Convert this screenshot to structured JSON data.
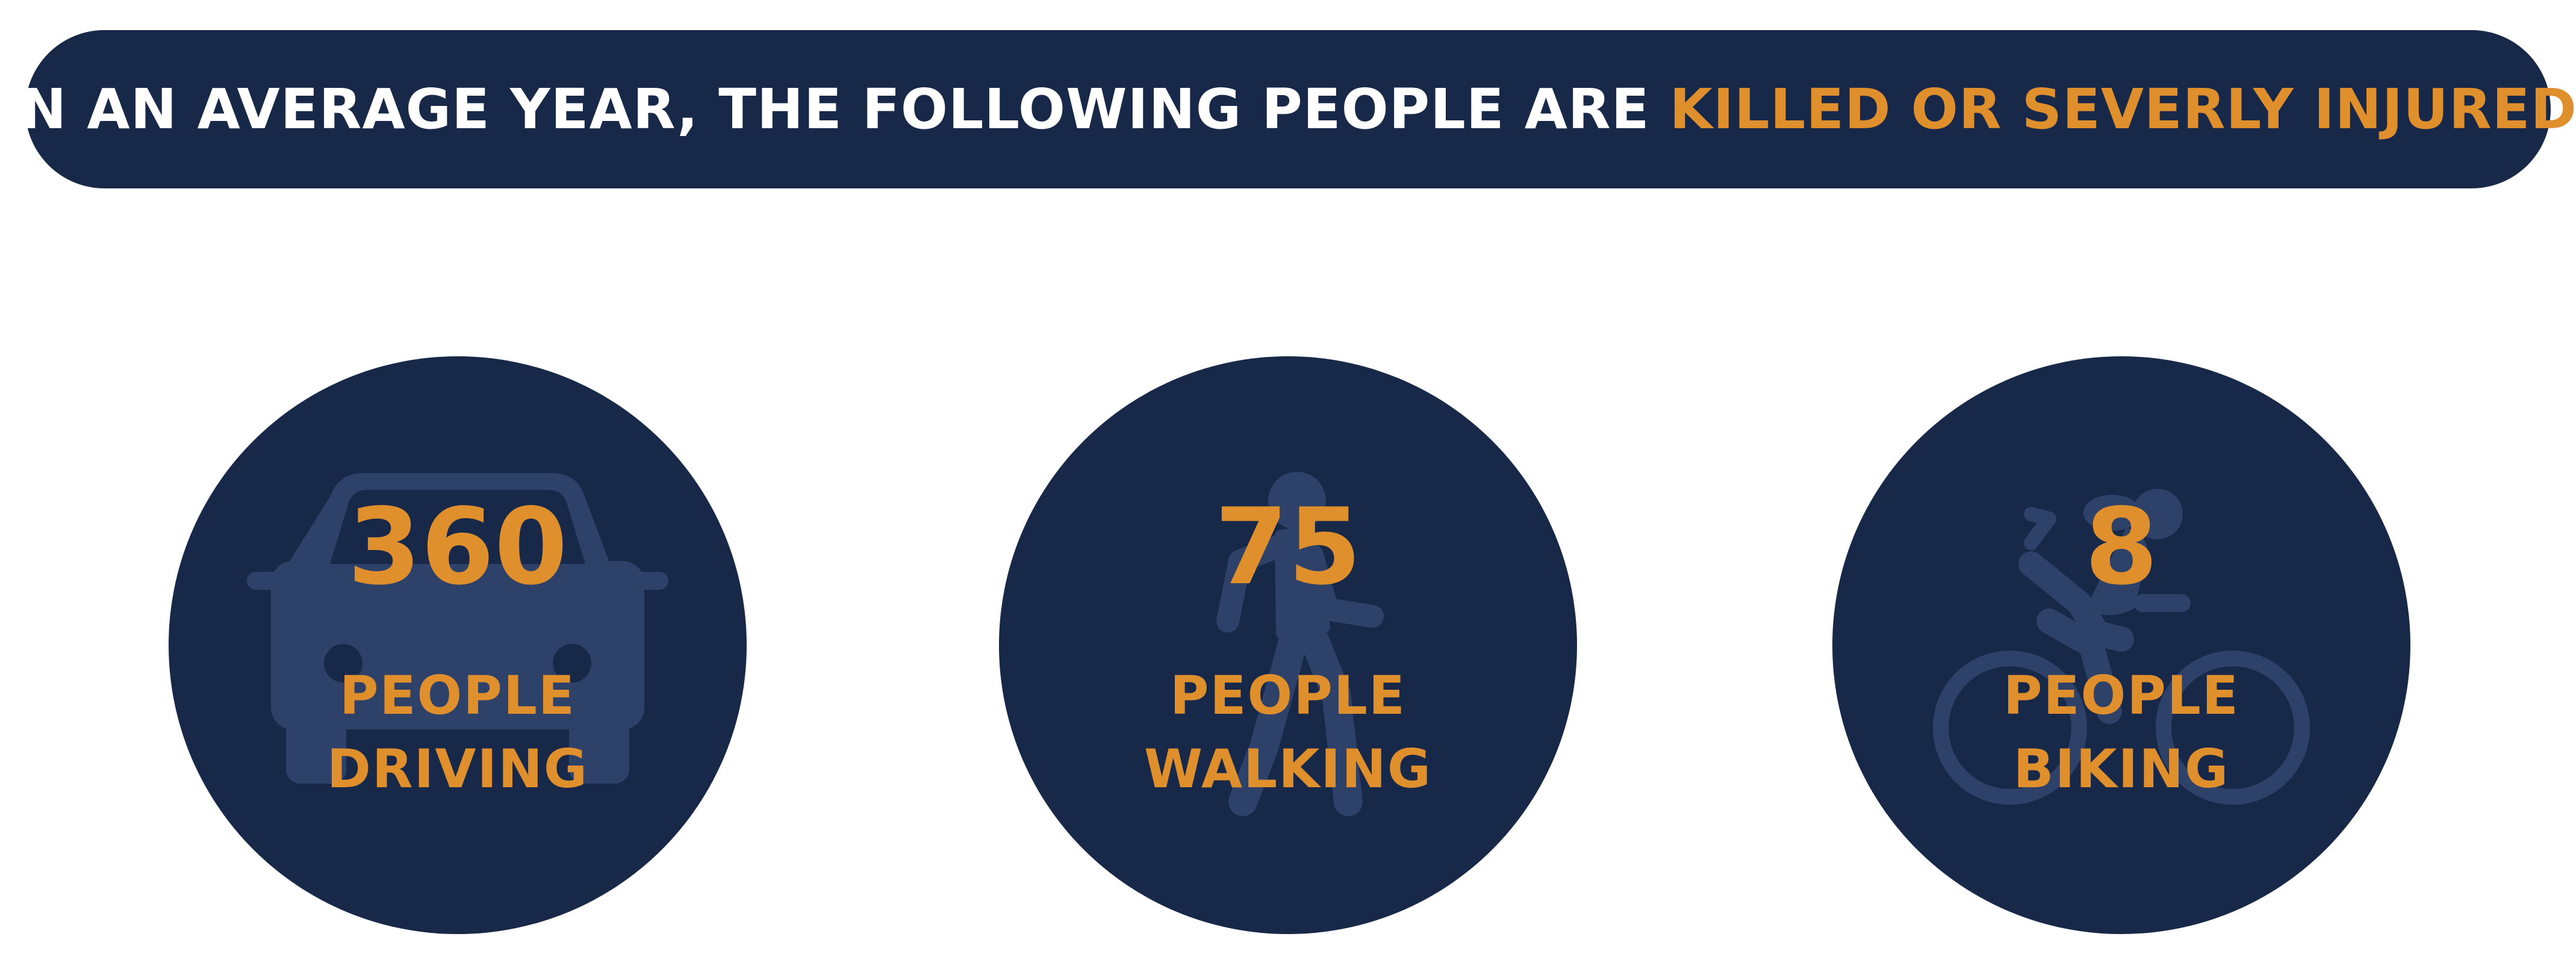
{
  "header": {
    "prefix": "IN AN AVERAGE YEAR, THE FOLLOWING PEOPLE ARE ",
    "highlight": "KILLED OR SEVERLY INJURED"
  },
  "stats": [
    {
      "number": "360",
      "line1": "PEOPLE",
      "line2": "DRIVING",
      "icon": "car-icon"
    },
    {
      "number": "75",
      "line1": "PEOPLE",
      "line2": "WALKING",
      "icon": "pedestrian-icon"
    },
    {
      "number": "8",
      "line1": "PEOPLE",
      "line2": "BIKING",
      "icon": "cyclist-icon"
    }
  ],
  "colors": {
    "navy": "#172849",
    "orange": "#e08f2d",
    "icon_tint": "#2e4168",
    "white": "#ffffff"
  }
}
